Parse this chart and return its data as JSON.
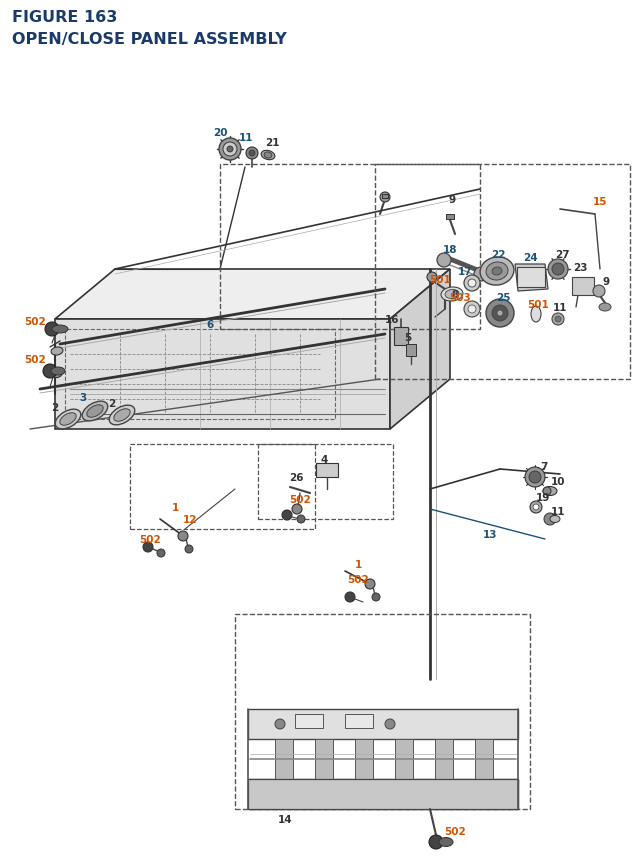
{
  "title_line1": "FIGURE 163",
  "title_line2": "OPEN/CLOSE PANEL ASSEMBLY",
  "title_color": "#1a3a6b",
  "title_fontsize": 11.5,
  "bg_color": "#ffffff",
  "figsize": [
    6.4,
    8.62
  ],
  "dpi": 100
}
